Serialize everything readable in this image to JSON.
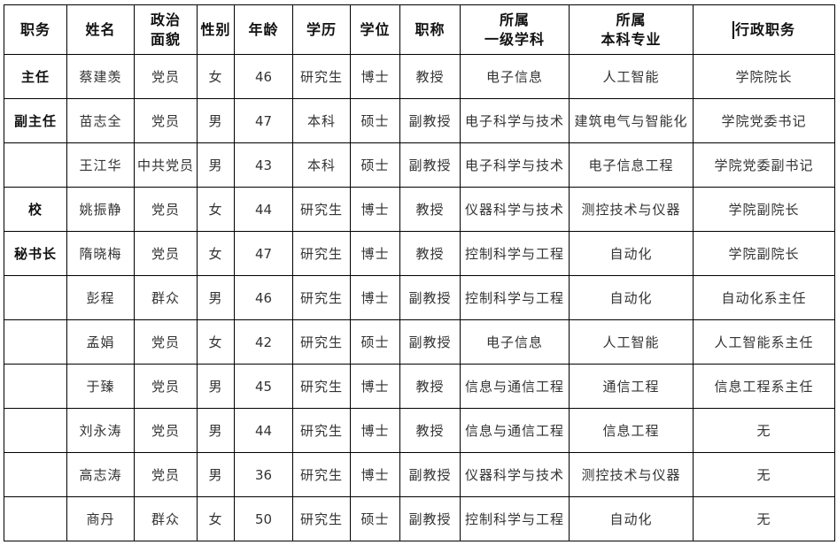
{
  "headers": [
    [
      "职务"
    ],
    [
      "姓名"
    ],
    [
      "政治",
      "面貌"
    ],
    [
      "性别"
    ],
    [
      "年龄"
    ],
    [
      "学历"
    ],
    [
      "学位"
    ],
    [
      "职称"
    ],
    [
      "所属",
      "一级学科"
    ],
    [
      "所属",
      "本科专业"
    ],
    [
      "行政职务"
    ]
  ],
  "rows": [
    [
      "主任",
      "蔡建羡",
      "党员",
      "女",
      "46",
      "研究生",
      "博士",
      "教授",
      "电子信息",
      "人工智能",
      "学院院长"
    ],
    [
      "副主任",
      "苗志全",
      "党员",
      "男",
      "47",
      "本科",
      "硕士",
      "副教授",
      "电子科学与技术",
      "建筑电气与智能化",
      "学院党委书记"
    ],
    [
      "",
      "王江华",
      "中共党员",
      "男",
      "43",
      "本科",
      "硕士",
      "副教授",
      "电子科学与技术",
      "电子信息工程",
      "学院党委副书记"
    ],
    [
      "校",
      "姚振静",
      "党员",
      "女",
      "44",
      "研究生",
      "博士",
      "教授",
      "仪器科学与技术",
      "测控技术与仪器",
      "学院副院长"
    ],
    [
      "秘书长",
      "隋晓梅",
      "党员",
      "女",
      "47",
      "研究生",
      "博士",
      "教授",
      "控制科学与工程",
      "自动化",
      "学院副院长"
    ],
    [
      "",
      "彭程",
      "群众",
      "男",
      "46",
      "研究生",
      "博士",
      "副教授",
      "控制科学与工程",
      "自动化",
      "自动化系主任"
    ],
    [
      "",
      "孟娟",
      "党员",
      "女",
      "42",
      "研究生",
      "硕士",
      "副教授",
      "电子信息",
      "人工智能",
      "人工智能系主任"
    ],
    [
      "",
      "于臻",
      "党员",
      "男",
      "45",
      "研究生",
      "博士",
      "教授",
      "信息与通信工程",
      "通信工程",
      "信息工程系主任"
    ],
    [
      "",
      "刘永涛",
      "党员",
      "男",
      "44",
      "研究生",
      "博士",
      "教授",
      "信息与通信工程",
      "信息工程",
      "无"
    ],
    [
      "",
      "高志涛",
      "党员",
      "男",
      "36",
      "研究生",
      "博士",
      "副教授",
      "仪器科学与技术",
      "测控技术与仪器",
      "无"
    ],
    [
      "",
      "商丹",
      "群众",
      "女",
      "50",
      "研究生",
      "硕士",
      "副教授",
      "控制科学与工程",
      "自动化",
      "无"
    ]
  ]
}
